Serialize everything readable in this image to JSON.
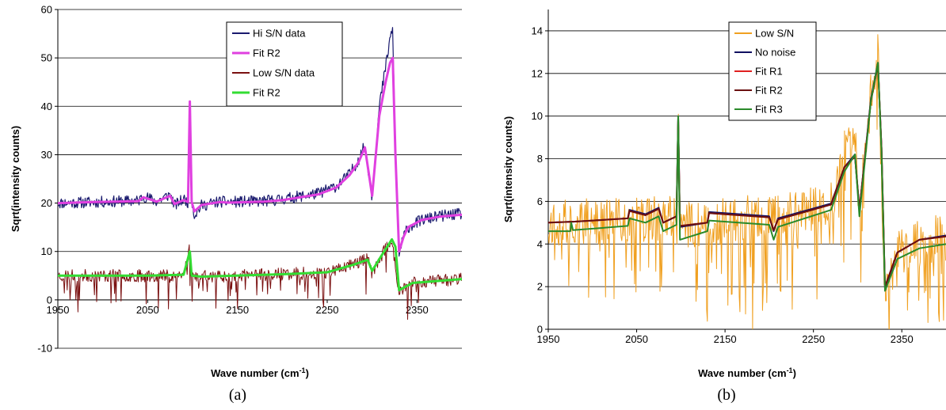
{
  "chart_data": [
    {
      "type": "line",
      "panel_label": "(a)",
      "xlabel": "Wave number (cm",
      "xlabel_sup": "-1",
      "xlabel_close": ")",
      "ylabel": "Sqrt(intensity counts)",
      "xlim": [
        1950,
        2400
      ],
      "ylim": [
        -10,
        60
      ],
      "xticks": [
        1950,
        2050,
        2150,
        2250,
        2350
      ],
      "yticks": [
        -10,
        0,
        10,
        20,
        30,
        40,
        50,
        60
      ],
      "x_axis_at": 0,
      "grid": true,
      "legend_position": "top-right",
      "series": [
        {
          "name": "Hi S/N data",
          "color": "#1a1a6e",
          "width": 1.2,
          "noise": 1.2,
          "seed": 11,
          "x": [
            1950,
            1990,
            2040,
            2045,
            2060,
            2075,
            2080,
            2090,
            2095,
            2097,
            2099,
            2102,
            2110,
            2130,
            2140,
            2180,
            2200,
            2240,
            2260,
            2275,
            2285,
            2292,
            2300,
            2308,
            2315,
            2320,
            2323,
            2326,
            2330,
            2335,
            2340,
            2355,
            2375,
            2400
          ],
          "y": [
            20,
            20.2,
            20.5,
            21.5,
            20.3,
            21.8,
            19.5,
            20.8,
            20.2,
            43,
            20.5,
            17.5,
            19.5,
            20.3,
            20.2,
            20.4,
            20.8,
            22,
            23.5,
            26,
            29,
            32,
            21,
            40,
            48,
            54,
            56,
            30,
            9.5,
            13,
            15,
            16.5,
            17.3,
            17.8
          ]
        },
        {
          "name": "Fit R2",
          "color": "#e040e0",
          "width": 3,
          "x": [
            1950,
            1990,
            2040,
            2045,
            2060,
            2075,
            2080,
            2090,
            2095,
            2097,
            2099,
            2102,
            2110,
            2130,
            2140,
            2180,
            2200,
            2240,
            2260,
            2275,
            2285,
            2292,
            2300,
            2308,
            2315,
            2320,
            2323,
            2326,
            2330,
            2335,
            2340,
            2355,
            2375,
            2400
          ],
          "y": [
            20,
            20.2,
            20.4,
            21.2,
            20.3,
            21.5,
            19.8,
            20.6,
            20.2,
            41,
            20.3,
            18.3,
            19.6,
            20.2,
            20.1,
            20.3,
            20.6,
            21.8,
            23.2,
            25.8,
            28.5,
            31.5,
            21.5,
            38,
            45,
            49,
            50,
            30,
            10,
            13,
            15,
            16.5,
            17.2,
            17.6
          ]
        },
        {
          "name": "Low S/N data",
          "color": "#7a1010",
          "width": 1.0,
          "noise": 1.3,
          "spikes": 0.11,
          "spike_depth": 7,
          "seed": 23,
          "x": [
            1950,
            2050,
            2090,
            2097,
            2099,
            2110,
            2200,
            2250,
            2280,
            2295,
            2300,
            2310,
            2322,
            2330,
            2345,
            2400
          ],
          "y": [
            5,
            5,
            5.2,
            11,
            5,
            4.8,
            5.3,
            5.7,
            7.5,
            8.5,
            5.5,
            9,
            12.5,
            1.5,
            3.5,
            4.5
          ]
        },
        {
          "name": "Fit R2",
          "color": "#33dd33",
          "width": 3,
          "x": [
            1950,
            2050,
            2090,
            2097,
            2099,
            2110,
            2200,
            2250,
            2280,
            2295,
            2300,
            2310,
            2322,
            2326,
            2330,
            2345,
            2400
          ],
          "y": [
            5,
            5,
            5.2,
            10,
            5,
            4.8,
            5.3,
            5.7,
            7.3,
            8.3,
            6,
            9,
            12.5,
            11,
            2,
            3.5,
            4.3
          ]
        }
      ]
    },
    {
      "type": "line",
      "panel_label": "(b)",
      "xlabel": "Wave number (cm",
      "xlabel_sup": "-1",
      "xlabel_close": ")",
      "ylabel": "Sqrt(intensity counts)",
      "xlim": [
        1950,
        2400
      ],
      "ylim": [
        0,
        15
      ],
      "xticks": [
        1950,
        2050,
        2150,
        2250,
        2350
      ],
      "yticks": [
        0,
        2,
        4,
        6,
        8,
        10,
        12,
        14
      ],
      "x_axis_at": 0,
      "grid": true,
      "legend_position": "top-left",
      "series": [
        {
          "name": "Low S/N",
          "color": "#f0a020",
          "width": 1.0,
          "noise": 1.1,
          "spikes": 0.22,
          "spike_depth": 4.5,
          "seed": 37,
          "x": [
            1950,
            2050,
            2095,
            2097,
            2099,
            2110,
            2200,
            2270,
            2285,
            2297,
            2302,
            2315,
            2323,
            2330,
            2340,
            2400
          ],
          "y": [
            5,
            5.1,
            5.2,
            11,
            5.2,
            4.9,
            5.3,
            5.8,
            8.5,
            9,
            5.5,
            11,
            13.5,
            2,
            3.5,
            4.5
          ]
        },
        {
          "name": "No noise",
          "color": "#101060",
          "width": 2,
          "x": [
            1950,
            1980,
            2040,
            2042,
            2060,
            2075,
            2080,
            2095,
            2097,
            2099,
            2130,
            2132,
            2200,
            2205,
            2210,
            2270,
            2285,
            2297,
            2302,
            2315,
            2323,
            2327,
            2331,
            2345,
            2370,
            2400
          ],
          "y": [
            5,
            5.05,
            5.2,
            5.6,
            5.4,
            5.7,
            5.0,
            5.3,
            10,
            4.8,
            5.0,
            5.5,
            5.3,
            4.6,
            5.2,
            5.9,
            7.6,
            8.2,
            5.6,
            10.8,
            12.5,
            8.5,
            1.9,
            3.6,
            4.2,
            4.4
          ]
        },
        {
          "name": "Fit R1",
          "color": "#e02020",
          "width": 2,
          "x": [
            1950,
            1980,
            2040,
            2042,
            2060,
            2075,
            2080,
            2095,
            2097,
            2099,
            2130,
            2132,
            2200,
            2205,
            2210,
            2270,
            2285,
            2297,
            2302,
            2315,
            2323,
            2327,
            2331,
            2345,
            2370,
            2400
          ],
          "y": [
            5,
            5.05,
            5.2,
            5.55,
            5.35,
            5.65,
            5.0,
            5.3,
            9.9,
            4.85,
            5.0,
            5.45,
            5.25,
            4.65,
            5.15,
            5.85,
            7.6,
            8.1,
            5.6,
            10.7,
            12.4,
            8.5,
            2.0,
            3.6,
            4.2,
            4.35
          ]
        },
        {
          "name": "Fit R2",
          "color": "#6a1010",
          "width": 2,
          "x": [
            1950,
            1980,
            2040,
            2042,
            2060,
            2075,
            2080,
            2095,
            2097,
            2099,
            2130,
            2132,
            2200,
            2205,
            2210,
            2270,
            2285,
            2297,
            2302,
            2315,
            2323,
            2327,
            2331,
            2345,
            2370,
            2400
          ],
          "y": [
            5,
            5.05,
            5.2,
            5.55,
            5.35,
            5.65,
            5.0,
            5.3,
            9.9,
            4.85,
            5.0,
            5.45,
            5.25,
            4.65,
            5.15,
            5.85,
            7.6,
            8.1,
            5.6,
            10.7,
            12.4,
            8.5,
            2.0,
            3.6,
            4.2,
            4.35
          ]
        },
        {
          "name": "Fit R3",
          "color": "#2a8a2a",
          "width": 2,
          "x": [
            1950,
            1975,
            1976,
            1978,
            2040,
            2042,
            2060,
            2075,
            2080,
            2095,
            2097,
            2099,
            2130,
            2132,
            2200,
            2205,
            2210,
            2270,
            2285,
            2297,
            2302,
            2315,
            2323,
            2327,
            2331,
            2345,
            2370,
            2400
          ],
          "y": [
            4.6,
            4.6,
            5.0,
            4.65,
            4.85,
            5.2,
            5.0,
            5.3,
            4.6,
            4.9,
            10,
            4.2,
            4.6,
            5.1,
            4.9,
            4.2,
            4.8,
            5.6,
            7.4,
            8.2,
            5.3,
            10.7,
            12.5,
            8.3,
            1.8,
            3.3,
            3.8,
            4.0
          ]
        }
      ]
    }
  ]
}
